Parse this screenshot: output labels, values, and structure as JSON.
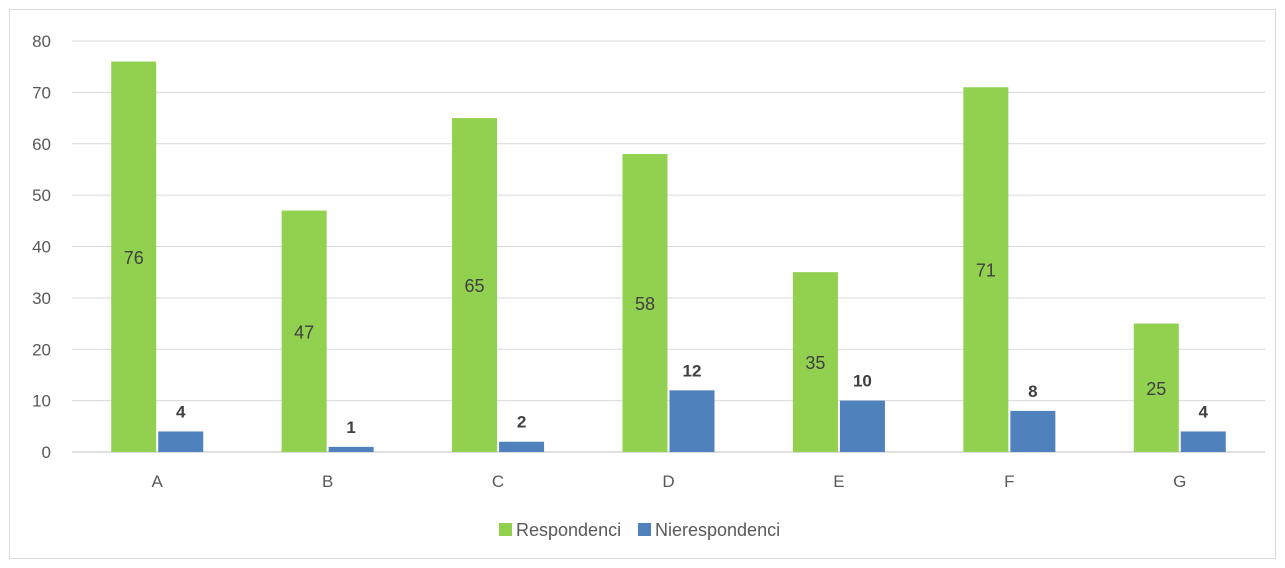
{
  "chart_data": {
    "type": "bar",
    "categories": [
      "A",
      "B",
      "C",
      "D",
      "E",
      "F",
      "G"
    ],
    "series": [
      {
        "name": "Respondenci",
        "color": "#92d050",
        "values": [
          76,
          47,
          65,
          58,
          35,
          71,
          25
        ]
      },
      {
        "name": "Nierespondenci",
        "color": "#4f81bd",
        "values": [
          4,
          1,
          2,
          12,
          10,
          8,
          4
        ]
      }
    ],
    "ylim": [
      0,
      80
    ],
    "yticks": [
      0,
      10,
      20,
      30,
      40,
      50,
      60,
      70,
      80
    ],
    "grid": true,
    "legend_position": "bottom",
    "title": "",
    "xlabel": "",
    "ylabel": ""
  }
}
